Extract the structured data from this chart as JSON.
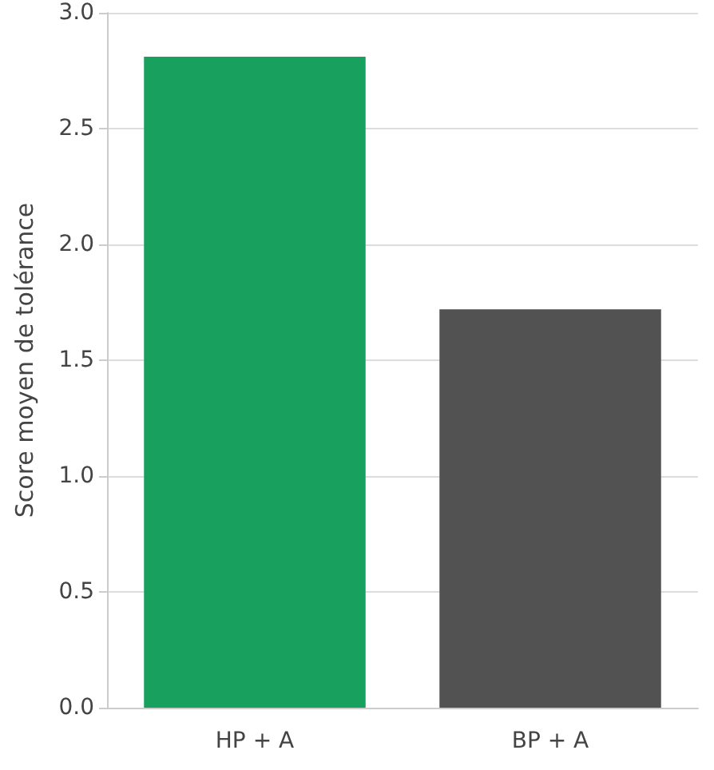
{
  "chart_data": {
    "type": "bar",
    "ylabel": "Score moyen de tolérance",
    "categories": [
      "HP + A",
      "BP + A"
    ],
    "values": [
      2.81,
      1.72
    ],
    "colors": [
      "#17a05e",
      "#525252"
    ],
    "ylim": [
      0,
      3
    ],
    "yticks": [
      {
        "value": 0,
        "label": "0.0"
      },
      {
        "value": 0.5,
        "label": "0.5"
      },
      {
        "value": 1,
        "label": "1.0"
      },
      {
        "value": 1.5,
        "label": "1.5"
      },
      {
        "value": 2,
        "label": "2.0"
      },
      {
        "value": 2.5,
        "label": "2.5"
      },
      {
        "value": 3,
        "label": "3.0"
      }
    ],
    "grid": "y"
  }
}
